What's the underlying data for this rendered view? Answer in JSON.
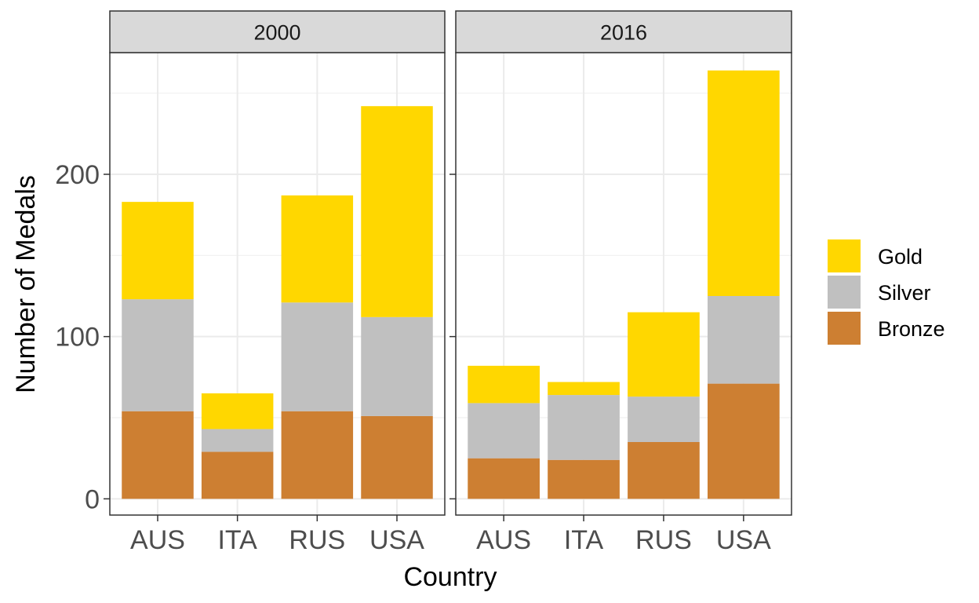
{
  "chart_data": {
    "type": "bar",
    "stacked": true,
    "xlabel": "Country",
    "ylabel": "Number of Medals",
    "ylim": [
      -10,
      275
    ],
    "yticks": [
      0,
      100,
      200
    ],
    "grid": true,
    "legend_position": "right",
    "categories": [
      "AUS",
      "ITA",
      "RUS",
      "USA"
    ],
    "series": [
      {
        "name": "Bronze",
        "color": "#CD7F32"
      },
      {
        "name": "Silver",
        "color": "#C0C0C0"
      },
      {
        "name": "Gold",
        "color": "#FFD700"
      }
    ],
    "legend_order": [
      "Gold",
      "Silver",
      "Bronze"
    ],
    "panels": [
      {
        "label": "2000",
        "values": {
          "Bronze": [
            54,
            29,
            54,
            51
          ],
          "Silver": [
            69,
            14,
            67,
            61
          ],
          "Gold": [
            60,
            22,
            66,
            130
          ]
        }
      },
      {
        "label": "2016",
        "values": {
          "Bronze": [
            25,
            24,
            35,
            71
          ],
          "Silver": [
            34,
            40,
            28,
            54
          ],
          "Gold": [
            23,
            8,
            52,
            139
          ]
        }
      }
    ]
  }
}
